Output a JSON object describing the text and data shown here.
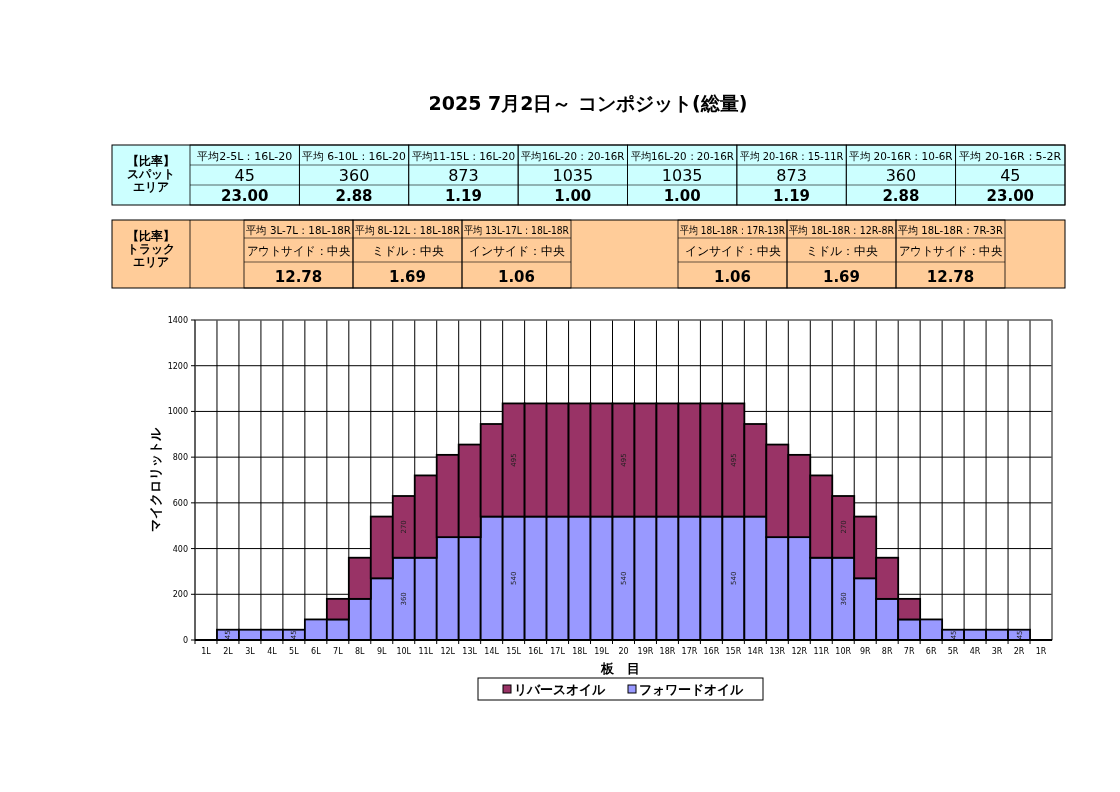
{
  "chart_data": {
    "type": "bar",
    "stacked": true,
    "title": "2025 7月2日～ コンポジット(総量)",
    "xlabel": "板　目",
    "ylabel": "マイクロリットル",
    "categories": [
      "1L",
      "2L",
      "3L",
      "4L",
      "5L",
      "6L",
      "7L",
      "8L",
      "9L",
      "10L",
      "11L",
      "12L",
      "13L",
      "14L",
      "15L",
      "16L",
      "17L",
      "18L",
      "19L",
      "20",
      "19R",
      "18R",
      "17R",
      "16R",
      "15R",
      "14R",
      "13R",
      "12R",
      "11R",
      "10R",
      "9R",
      "8R",
      "7R",
      "6R",
      "5R",
      "4R",
      "3R",
      "2R",
      "1R"
    ],
    "series": [
      {
        "name": "フォワードオイル",
        "color": "#9999ff",
        "values": [
          0,
          45,
          45,
          45,
          45,
          90,
          90,
          180,
          270,
          360,
          360,
          450,
          450,
          540,
          540,
          540,
          540,
          540,
          540,
          540,
          540,
          540,
          540,
          540,
          540,
          540,
          450,
          450,
          360,
          360,
          270,
          180,
          90,
          90,
          45,
          45,
          45,
          45,
          0
        ],
        "value_labels": [
          null,
          "45",
          null,
          null,
          "45",
          null,
          null,
          null,
          null,
          "360",
          null,
          null,
          null,
          null,
          "540",
          null,
          null,
          null,
          null,
          "540",
          null,
          null,
          null,
          null,
          "540",
          null,
          null,
          null,
          null,
          "360",
          null,
          null,
          null,
          null,
          "45",
          null,
          null,
          "45",
          null
        ]
      },
      {
        "name": "リバースオイル",
        "color": "#993366",
        "values": [
          0,
          0,
          0,
          0,
          0,
          0,
          90,
          180,
          270,
          270,
          360,
          360,
          405,
          405,
          495,
          495,
          495,
          495,
          495,
          495,
          495,
          495,
          495,
          495,
          495,
          405,
          405,
          360,
          360,
          270,
          270,
          180,
          90,
          0,
          0,
          0,
          0,
          0,
          0
        ],
        "value_labels": [
          null,
          null,
          null,
          null,
          null,
          null,
          null,
          null,
          null,
          "270",
          null,
          null,
          null,
          null,
          "495",
          null,
          null,
          null,
          null,
          "495",
          null,
          null,
          null,
          null,
          "495",
          null,
          null,
          null,
          null,
          "270",
          null,
          null,
          null,
          null,
          null,
          null,
          null,
          null,
          null
        ]
      }
    ],
    "ylim": [
      0,
      1400
    ],
    "yticks": [
      0,
      200,
      400,
      600,
      800,
      1000,
      1200,
      1400
    ],
    "grid": true,
    "legend": "bottom",
    "annotations": [
      "【比率】スパットエリア",
      "平均2-5L：16L-20",
      "45",
      "23.00",
      "平均 6-10L：16L-20",
      "360",
      "2.88",
      "平均11-15L：16L-20",
      "873",
      "1.19",
      "平均16L-20：20-16R",
      "1035",
      "1.00",
      "平均16L-20：20-16R",
      "1035",
      "1.00",
      "平均 20-16R：15-11R",
      "873",
      "1.19",
      "平均 20-16R：10-6R",
      "360",
      "2.88",
      "平均 20-16R：5-2R",
      "45",
      "23.00",
      "【比率】トラックエリア",
      "平均 3L-7L：18L-18R",
      "アウトサイド：中央",
      "12.78",
      "平均 8L-12L：18L-18R",
      "ミドル：中央",
      "1.69",
      "平均 13L-17L：18L-18R",
      "インサイド：中央",
      "1.06",
      "平均 18L-18R：17R-13R",
      "インサイド：中央",
      "1.06",
      "平均 18L-18R：12R-8R",
      "ミドル：中央",
      "1.69",
      "平均 18L-18R：7R-3R",
      "アウトサイド：中央",
      "12.78"
    ]
  }
}
